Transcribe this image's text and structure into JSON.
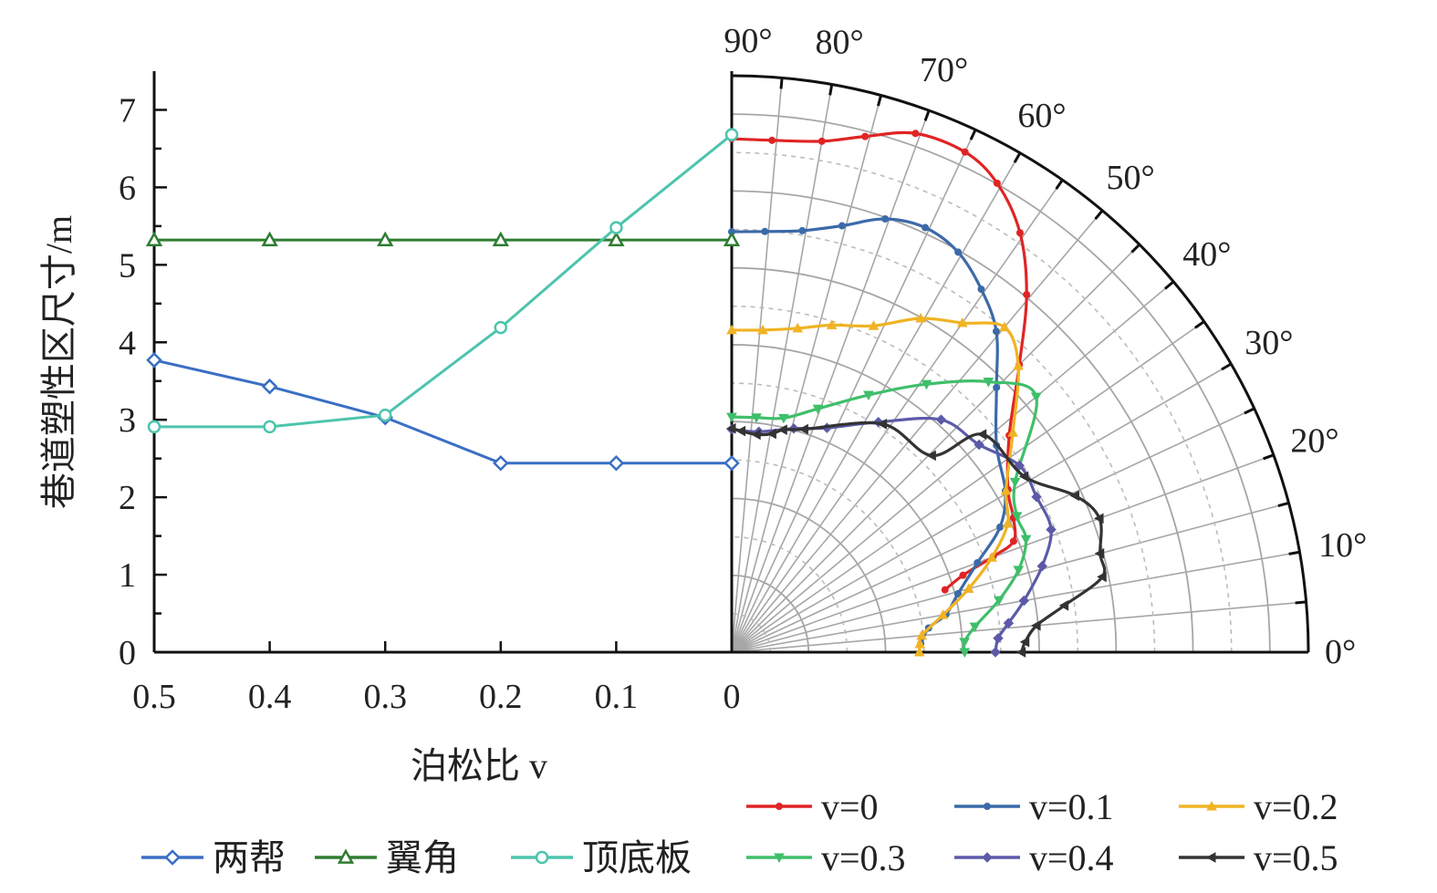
{
  "chart_data": [
    {
      "type": "line",
      "xlabel": "泊松比 v",
      "ylabel": "巷道塑性区尺寸/m",
      "x": [
        0.5,
        0.4,
        0.3,
        0.2,
        0.1,
        0
      ],
      "xticks": [
        "0.5",
        "0.4",
        "0.3",
        "0.2",
        "0.1",
        "0"
      ],
      "xlim": [
        0.5,
        0
      ],
      "ylim": [
        0,
        7.5
      ],
      "yticks": [
        "0",
        "1",
        "2",
        "3",
        "4",
        "5",
        "6",
        "7"
      ],
      "grid": false,
      "legend_position": "bottom-left",
      "series": [
        {
          "name": "两帮",
          "color": "#3a6fc4",
          "marker": "diamond",
          "values": [
            3.77,
            3.43,
            3.03,
            2.44,
            2.44,
            2.44
          ]
        },
        {
          "name": "翼角",
          "color": "#2e7d32",
          "marker": "triangle",
          "values": [
            5.32,
            5.32,
            5.32,
            5.32,
            5.32,
            5.32
          ]
        },
        {
          "name": "顶底板",
          "color": "#4dc4ad",
          "marker": "circle",
          "values": [
            2.91,
            2.91,
            3.06,
            4.19,
            5.48,
            6.68
          ]
        }
      ]
    },
    {
      "type": "polar",
      "angle_unit": "deg",
      "angle_range": [
        0,
        90
      ],
      "angle_ticks": [
        "0°",
        "10°",
        "20°",
        "30°",
        "40°",
        "50°",
        "60°",
        "70°",
        "80°",
        "90°"
      ],
      "radius_range": [
        0,
        7.5
      ],
      "grid": true,
      "legend_position": "bottom-right",
      "series": [
        {
          "name": "v=0",
          "color": "#e02424",
          "marker": "dot",
          "points": [
            [
              90,
              6.68
            ],
            [
              85.5,
              6.68
            ],
            [
              80,
              6.75
            ],
            [
              75.5,
              6.93
            ],
            [
              70.5,
              7.16
            ],
            [
              65,
              7.18
            ],
            [
              60.5,
              7.01
            ],
            [
              55.5,
              6.62
            ],
            [
              50.5,
              6.03
            ],
            [
              45,
              5.29
            ],
            [
              38,
              4.58
            ],
            [
              30.5,
              4.17
            ],
            [
              25.5,
              4.06
            ],
            [
              21.5,
              3.94
            ],
            [
              20.1,
              3.62
            ],
            [
              18.4,
              3.17
            ],
            [
              16.3,
              2.89
            ]
          ]
        },
        {
          "name": "v=0.1",
          "color": "#3b6aa8",
          "marker": "dot",
          "points": [
            [
              90,
              5.47
            ],
            [
              85.5,
              5.49
            ],
            [
              80.5,
              5.56
            ],
            [
              75.5,
              5.73
            ],
            [
              70.5,
              5.98
            ],
            [
              65.5,
              6.07
            ],
            [
              60.5,
              5.98
            ],
            [
              55.5,
              5.73
            ],
            [
              50.5,
              5.41
            ],
            [
              45,
              4.87
            ],
            [
              38,
              4.37
            ],
            [
              30.5,
              4.13
            ],
            [
              25,
              3.85
            ],
            [
              20,
              3.4
            ],
            [
              14.5,
              3.04
            ],
            [
              10,
              2.83
            ],
            [
              7,
              2.58
            ],
            [
              2.5,
              2.46
            ]
          ]
        },
        {
          "name": "v=0.2",
          "color": "#f0b323",
          "marker": "triangle",
          "points": [
            [
              90,
              4.19
            ],
            [
              84.5,
              4.21
            ],
            [
              78.5,
              4.3
            ],
            [
              73,
              4.45
            ],
            [
              66.5,
              4.63
            ],
            [
              60.5,
              4.99
            ],
            [
              55,
              5.23
            ],
            [
              50,
              5.52
            ],
            [
              45,
              5.27
            ],
            [
              38,
              4.64
            ],
            [
              30.5,
              4.14
            ],
            [
              25,
              3.96
            ],
            [
              20,
              3.6
            ],
            [
              15,
              3.19
            ],
            [
              10,
              2.79
            ],
            [
              5,
              2.48
            ],
            [
              2.5,
              2.45
            ],
            [
              0,
              2.44
            ]
          ]
        },
        {
          "name": "v=0.3",
          "color": "#3fbf6a",
          "marker": "triangle-down",
          "points": [
            [
              90,
              3.06
            ],
            [
              84,
              3.07
            ],
            [
              77.5,
              3.12
            ],
            [
              70.5,
              3.36
            ],
            [
              62,
              3.79
            ],
            [
              54,
              4.31
            ],
            [
              46.5,
              4.85
            ],
            [
              40,
              5.17
            ],
            [
              31,
              4.3
            ],
            [
              25.5,
              4.11
            ],
            [
              21,
              4.1
            ],
            [
              16,
              3.88
            ],
            [
              11,
              3.54
            ],
            [
              6,
              3.18
            ],
            [
              2.5,
              3.03
            ],
            [
              0,
              3.03
            ]
          ]
        },
        {
          "name": "v=0.4",
          "color": "#5c5aa8",
          "marker": "diamond",
          "points": [
            [
              90,
              2.9
            ],
            [
              83,
              2.89
            ],
            [
              74.5,
              3.02
            ],
            [
              67,
              3.17
            ],
            [
              57.5,
              3.55
            ],
            [
              48,
              4.07
            ],
            [
              40,
              4.2
            ],
            [
              33,
              4.46
            ],
            [
              27,
              4.45
            ],
            [
              21,
              4.45
            ],
            [
              15.5,
              4.19
            ],
            [
              10,
              3.86
            ],
            [
              6,
              3.62
            ],
            [
              3,
              3.47
            ],
            [
              0,
              3.43
            ]
          ]
        },
        {
          "name": "v=0.5",
          "color": "#333333",
          "marker": "triangle-left",
          "points": [
            [
              90,
              2.91
            ],
            [
              87.5,
              2.88
            ],
            [
              83.5,
              2.85
            ],
            [
              79.5,
              2.89
            ],
            [
              77,
              2.97
            ],
            [
              72,
              3.05
            ],
            [
              56.5,
              3.56
            ],
            [
              44.5,
              3.65
            ],
            [
              41,
              4.32
            ],
            [
              31,
              4.44
            ],
            [
              24.5,
              4.91
            ],
            [
              20,
              5.09
            ],
            [
              15,
              4.96
            ],
            [
              11.5,
              4.92
            ],
            [
              8,
              4.37
            ],
            [
              5,
              3.98
            ],
            [
              2,
              3.82
            ],
            [
              0,
              3.77
            ]
          ]
        }
      ]
    }
  ],
  "legend_left": [
    "两帮",
    "翼角",
    "顶底板"
  ],
  "legend_right": [
    "v=0",
    "v=0.1",
    "v=0.2",
    "v=0.3",
    "v=0.4",
    "v=0.5"
  ]
}
